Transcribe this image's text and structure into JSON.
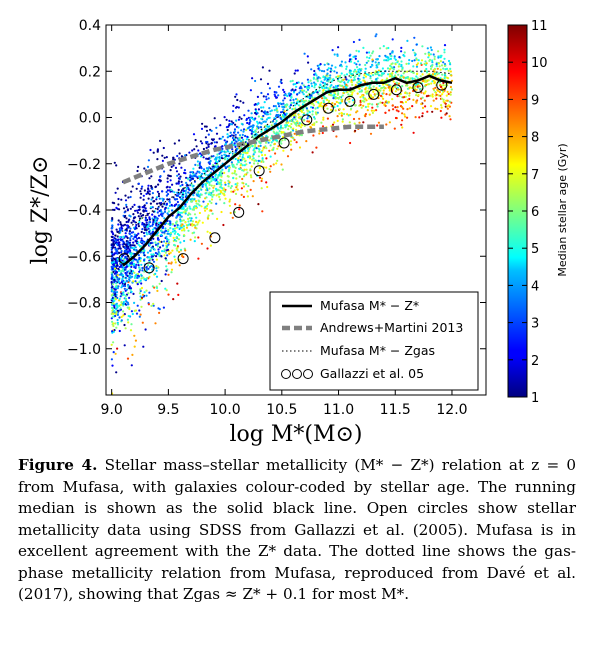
{
  "chart_data": {
    "type": "scatter",
    "title": "",
    "xlabel": "log M*(M⊙)",
    "ylabel": "log Z*/Z⊙",
    "xlim": [
      8.95,
      12.3
    ],
    "ylim": [
      -1.2,
      0.4
    ],
    "xticks": [
      "9.0",
      "9.5",
      "10.0",
      "10.5",
      "11.0",
      "11.5",
      "12.0"
    ],
    "xtick_values": [
      9.0,
      9.5,
      10.0,
      10.5,
      11.0,
      11.5,
      12.0
    ],
    "yticks": [
      "−1.0",
      "−0.8",
      "−0.6",
      "−0.4",
      "−0.2",
      "0.0",
      "0.2",
      "0.4"
    ],
    "ytick_values": [
      -1.0,
      -0.8,
      -0.6,
      -0.4,
      -0.2,
      0.0,
      0.2,
      0.4
    ],
    "grid": false,
    "legend_position": "lower-right",
    "colorbar": {
      "label": "Median stellar age (Gyr)",
      "range": [
        1,
        11
      ],
      "ticks": [
        "1",
        "2",
        "3",
        "4",
        "5",
        "6",
        "7",
        "8",
        "9",
        "10",
        "11"
      ],
      "colormap": "jet"
    },
    "series": [
      {
        "name": "Mufasa M* − Z*",
        "style": "solid-black",
        "x": [
          9.1,
          9.2,
          9.3,
          9.4,
          9.5,
          9.6,
          9.7,
          9.8,
          9.9,
          10.0,
          10.1,
          10.2,
          10.3,
          10.4,
          10.5,
          10.6,
          10.7,
          10.8,
          10.9,
          11.0,
          11.1,
          11.2,
          11.3,
          11.4,
          11.5,
          11.6,
          11.7,
          11.8,
          11.9,
          12.0
        ],
        "y": [
          -0.64,
          -0.6,
          -0.55,
          -0.49,
          -0.43,
          -0.39,
          -0.33,
          -0.28,
          -0.24,
          -0.2,
          -0.16,
          -0.12,
          -0.08,
          -0.05,
          -0.02,
          0.02,
          0.05,
          0.08,
          0.11,
          0.12,
          0.12,
          0.14,
          0.15,
          0.15,
          0.17,
          0.15,
          0.16,
          0.18,
          0.16,
          0.15
        ]
      },
      {
        "name": "Andrews+Martini 2013",
        "style": "dashed-grey",
        "x": [
          9.1,
          9.3,
          9.5,
          9.7,
          9.9,
          10.1,
          10.3,
          10.5,
          10.7,
          10.9,
          11.1,
          11.3,
          11.4
        ],
        "y": [
          -0.28,
          -0.24,
          -0.2,
          -0.17,
          -0.14,
          -0.12,
          -0.1,
          -0.08,
          -0.06,
          -0.05,
          -0.04,
          -0.04,
          -0.04
        ]
      },
      {
        "name": "Mufasa M* − Zgas",
        "style": "dotted-black",
        "x": [
          9.0,
          9.2,
          9.4,
          9.6,
          9.8,
          10.0,
          10.2,
          10.4,
          10.6,
          10.8,
          11.0,
          11.2,
          11.4,
          11.6,
          11.8,
          12.0
        ],
        "y": [
          -0.52,
          -0.46,
          -0.39,
          -0.32,
          -0.25,
          -0.17,
          -0.1,
          -0.02,
          0.05,
          0.12,
          0.17,
          0.19,
          0.2,
          0.2,
          0.2,
          0.19
        ]
      },
      {
        "name": "Gallazzi et al. 05",
        "style": "open-circles",
        "x": [
          9.11,
          9.33,
          9.63,
          9.91,
          10.12,
          10.3,
          10.52,
          10.72,
          10.91,
          11.1,
          11.31,
          11.51,
          11.7,
          11.91
        ],
        "y": [
          -0.61,
          -0.65,
          -0.61,
          -0.52,
          -0.41,
          -0.23,
          -0.11,
          -0.01,
          0.04,
          0.07,
          0.1,
          0.12,
          0.13,
          0.14
        ]
      }
    ]
  },
  "caption": {
    "label": "Figure 4.",
    "text": "Stellar mass–stellar metallicity (M* − Z*) relation at z = 0 from Mufasa, with galaxies colour-coded by stellar age. The running median is shown as the solid black line. Open circles show stellar metallicity data using SDSS from Gallazzi et al. (2005). Mufasa is in excellent agreement with the Z* data. The dotted line shows the gas-phase metallicity relation from Mufasa, reproduced from Davé et al. (2017), showing that Zgas ≈ Z* + 0.1 for most M*."
  }
}
